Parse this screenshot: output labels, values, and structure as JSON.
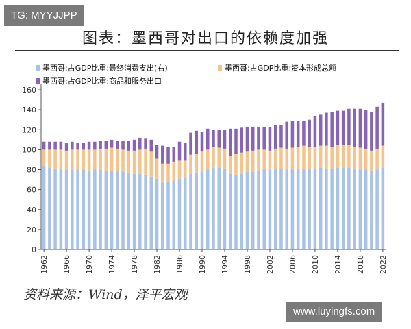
{
  "watermark_top": "TG: MYYJJPP",
  "watermark_bottom": "www.luyingfs.com",
  "title": "图表：墨西哥对出口的依赖度加强",
  "source": "资料来源：Wind，泽平宏观",
  "colors": {
    "consumption": "#a9c3e7",
    "capital": "#f4c48c",
    "exports": "#8864b5",
    "axis": "#555555",
    "rule": "#333333"
  },
  "chart_data": {
    "type": "bar",
    "stacked": true,
    "title": "图表：墨西哥对出口的依赖度加强",
    "xlabel": "",
    "ylabel": "",
    "ylim": [
      0,
      160
    ],
    "yticks": [
      0,
      20,
      40,
      60,
      80,
      100,
      120,
      140,
      160
    ],
    "xticks": [
      1962,
      1966,
      1970,
      1974,
      1978,
      1982,
      1986,
      1990,
      1994,
      1998,
      2002,
      2006,
      2010,
      2014,
      2018,
      2022
    ],
    "legend_position": "top",
    "grid": false,
    "categories": [
      1962,
      1963,
      1964,
      1965,
      1966,
      1967,
      1968,
      1969,
      1970,
      1971,
      1972,
      1973,
      1974,
      1975,
      1976,
      1977,
      1978,
      1979,
      1980,
      1981,
      1982,
      1983,
      1984,
      1985,
      1986,
      1987,
      1988,
      1989,
      1990,
      1991,
      1992,
      1993,
      1994,
      1995,
      1996,
      1997,
      1998,
      1999,
      2000,
      2001,
      2002,
      2003,
      2004,
      2005,
      2006,
      2007,
      2008,
      2009,
      2010,
      2011,
      2012,
      2013,
      2014,
      2015,
      2016,
      2017,
      2018,
      2019,
      2020,
      2021,
      2022
    ],
    "series": [
      {
        "name": "墨西哥:占GDP比重:最终消费支出(右)",
        "color": "#a9c3e7",
        "values": [
          84,
          82,
          81,
          81,
          80,
          80,
          80,
          80,
          79,
          80,
          80,
          79,
          79,
          79,
          78,
          77,
          76,
          76,
          75,
          73,
          71,
          67,
          68,
          69,
          71,
          72,
          76,
          77,
          78,
          80,
          82,
          82,
          81,
          76,
          75,
          76,
          78,
          78,
          79,
          80,
          80,
          81,
          81,
          80,
          80,
          81,
          81,
          81,
          81,
          82,
          81,
          81,
          82,
          82,
          82,
          81,
          80,
          80,
          79,
          80,
          82
        ]
      },
      {
        "name": "墨西哥:占GDP比重:资本形成总额",
        "color": "#f4c48c",
        "values": [
          16,
          18,
          19,
          19,
          19,
          20,
          20,
          20,
          21,
          20,
          21,
          22,
          23,
          22,
          22,
          22,
          23,
          24,
          26,
          25,
          20,
          19,
          18,
          19,
          18,
          17,
          19,
          19,
          20,
          20,
          21,
          20,
          20,
          18,
          21,
          21,
          20,
          21,
          21,
          20,
          19,
          20,
          21,
          21,
          22,
          22,
          23,
          22,
          22,
          22,
          23,
          22,
          23,
          23,
          23,
          22,
          22,
          21,
          20,
          21,
          22
        ]
      },
      {
        "name": "墨西哥:占GDP比重:商品和服务出口",
        "color": "#8864b5",
        "values": [
          8,
          8,
          8,
          8,
          8,
          8,
          7,
          7,
          8,
          8,
          8,
          8,
          8,
          8,
          9,
          10,
          11,
          12,
          10,
          12,
          14,
          18,
          17,
          15,
          19,
          18,
          22,
          23,
          20,
          21,
          17,
          18,
          19,
          27,
          25,
          25,
          25,
          24,
          23,
          23,
          24,
          24,
          23,
          27,
          27,
          26,
          25,
          27,
          31,
          31,
          33,
          35,
          34,
          34,
          36,
          38,
          39,
          39,
          39,
          42,
          43
        ]
      }
    ]
  }
}
